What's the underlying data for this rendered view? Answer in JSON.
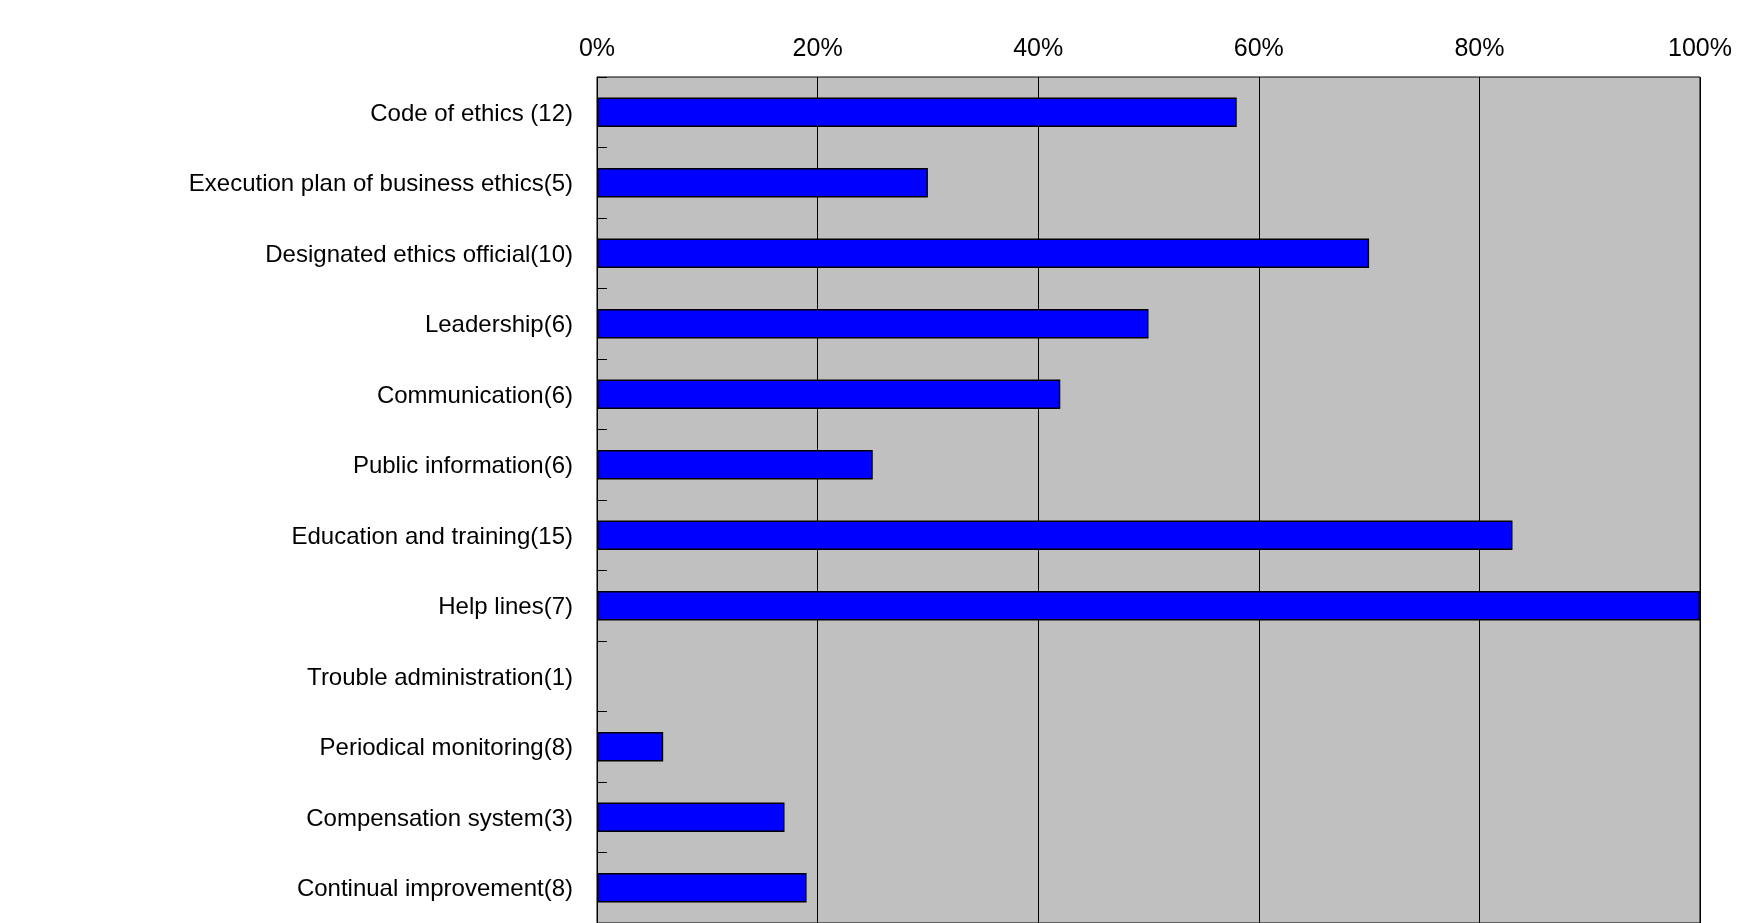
{
  "chart_data": {
    "type": "bar",
    "orientation": "horizontal",
    "categories": [
      "Code of ethics (12)",
      "Execution plan of business ethics(5)",
      "Designated ethics official(10)",
      "Leadership(6)",
      "Communication(6)",
      "Public information(6)",
      "Education and training(15)",
      "Help lines(7)",
      "Trouble administration(1)",
      "Periodical monitoring(8)",
      "Compensation system(3)",
      "Continual improvement(8)"
    ],
    "values": [
      58,
      30,
      70,
      50,
      42,
      25,
      83,
      100,
      0,
      6,
      17,
      19
    ],
    "color": "#0000ff",
    "xlim": [
      0,
      100
    ],
    "xticks": [
      {
        "value": 0,
        "label": "0%"
      },
      {
        "value": 20,
        "label": "20%"
      },
      {
        "value": 40,
        "label": "40%"
      },
      {
        "value": 60,
        "label": "60%"
      },
      {
        "value": 80,
        "label": "80%"
      },
      {
        "value": 100,
        "label": "100%"
      }
    ],
    "grid": "x"
  }
}
